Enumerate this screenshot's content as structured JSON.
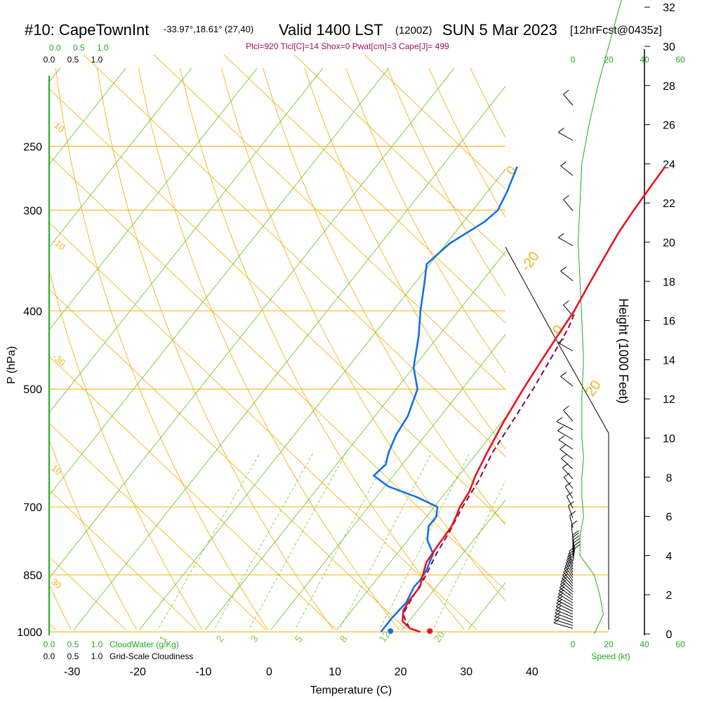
{
  "header": {
    "station": "#10: CapeTownInt",
    "coords": "-33.97°,18.61° (27,40)",
    "valid": "Valid 1400 LST",
    "zulu": "(1200Z)",
    "date": "SUN 5 Mar 2023",
    "fcst": "[12hrFcst@0435z]"
  },
  "parcel_info": "Plcl=920 Tlcl[C]=14 Shox=0 Pwat[cm]=3 Cape[J]= 499",
  "colors": {
    "temperature": "#e8141e",
    "dewpoint": "#1570e8",
    "parcel": "#7a0a4a",
    "isotherm": "#6ab820",
    "dry_adiabat": "#f2b418",
    "mixing_ratio": "#8cc63c",
    "green_label": "#22aa22",
    "parcel_text": "#a0105a"
  },
  "labels": {
    "x_axis": "Temperature (C)",
    "y_axis": "P (hPa)",
    "right_axis": "Height (1000 Feet)",
    "cloudwater": "CloudWater (g/Kg)",
    "cloudiness": "Grid-Scale Cloudiness",
    "speed": "Speed (kt)"
  },
  "top_scales": {
    "green": [
      "0.0",
      "0.5",
      "1.0"
    ],
    "black": [
      "0.0",
      "0.5",
      "1.0"
    ],
    "speed": [
      "0",
      "20",
      "40",
      "60"
    ]
  },
  "bottom_scales": {
    "green": [
      "0.0",
      "0.5",
      "1.0"
    ],
    "black": [
      "0.0",
      "0.5",
      "1.0"
    ],
    "speed": [
      "0",
      "20",
      "40",
      "60"
    ]
  },
  "chart_data": {
    "type": "line",
    "pressure_ticks": [
      250,
      300,
      400,
      500,
      700,
      850,
      1000
    ],
    "pressure_range": [
      250,
      1000
    ],
    "temperature_ticks": [
      -30,
      -20,
      -10,
      0,
      10,
      20,
      30,
      40
    ],
    "height_ticks_kft": [
      0,
      2,
      4,
      6,
      8,
      10,
      12,
      14,
      16,
      18,
      20,
      22,
      24,
      26,
      28,
      30,
      32
    ],
    "mixing_ratio_labels": [
      "1",
      "2",
      "3",
      "5",
      "8",
      "12",
      "20"
    ],
    "dry_adiabat_labels": [
      "10",
      "0",
      "-10",
      "-20",
      "-30",
      "0",
      "10",
      "20",
      "30"
    ],
    "surface_temperature": 24.5,
    "surface_dewpoint": 18.5,
    "temperature_profile": [
      {
        "p": 1000,
        "t": 23.0
      },
      {
        "p": 990,
        "t": 21.0
      },
      {
        "p": 970,
        "t": 19.0
      },
      {
        "p": 940,
        "t": 17.8
      },
      {
        "p": 910,
        "t": 17.5
      },
      {
        "p": 880,
        "t": 17.5
      },
      {
        "p": 850,
        "t": 16.5
      },
      {
        "p": 820,
        "t": 15.5
      },
      {
        "p": 780,
        "t": 15.2
      },
      {
        "p": 740,
        "t": 15.0
      },
      {
        "p": 720,
        "t": 14.5
      },
      {
        "p": 700,
        "t": 13.9
      },
      {
        "p": 670,
        "t": 13.5
      },
      {
        "p": 640,
        "t": 12.5
      },
      {
        "p": 600,
        "t": 11.5
      },
      {
        "p": 550,
        "t": 10.3
      },
      {
        "p": 500,
        "t": 9.3
      },
      {
        "p": 460,
        "t": 8.6
      },
      {
        "p": 430,
        "t": 8.1
      },
      {
        "p": 400,
        "t": 7.6
      },
      {
        "p": 370,
        "t": 6.6
      },
      {
        "p": 340,
        "t": 5.6
      },
      {
        "p": 320,
        "t": 4.9
      },
      {
        "p": 300,
        "t": 4.5
      },
      {
        "p": 280,
        "t": 4.2
      },
      {
        "p": 265,
        "t": 4.0
      }
    ],
    "dewpoint_profile": [
      {
        "p": 1000,
        "t": 17.0
      },
      {
        "p": 960,
        "t": 17.0
      },
      {
        "p": 920,
        "t": 17.3
      },
      {
        "p": 880,
        "t": 16.6
      },
      {
        "p": 860,
        "t": 16.7
      },
      {
        "p": 840,
        "t": 16.5
      },
      {
        "p": 800,
        "t": 15.5
      },
      {
        "p": 770,
        "t": 13.0
      },
      {
        "p": 740,
        "t": 11.5
      },
      {
        "p": 720,
        "t": 11.5
      },
      {
        "p": 700,
        "t": 10.5
      },
      {
        "p": 680,
        "t": 6.0
      },
      {
        "p": 660,
        "t": 0.5
      },
      {
        "p": 640,
        "t": -3.0
      },
      {
        "p": 620,
        "t": -2.5
      },
      {
        "p": 600,
        "t": -3.5
      },
      {
        "p": 570,
        "t": -4.5
      },
      {
        "p": 540,
        "t": -5.0
      },
      {
        "p": 500,
        "t": -6.8
      },
      {
        "p": 470,
        "t": -10.0
      },
      {
        "p": 430,
        "t": -13.0
      },
      {
        "p": 400,
        "t": -15.8
      },
      {
        "p": 370,
        "t": -18.5
      },
      {
        "p": 350,
        "t": -20.5
      },
      {
        "p": 330,
        "t": -19.5
      },
      {
        "p": 310,
        "t": -16.8
      },
      {
        "p": 300,
        "t": -16.2
      },
      {
        "p": 285,
        "t": -17.0
      },
      {
        "p": 265,
        "t": -18.5
      }
    ],
    "parcel_profile": [
      {
        "p": 990,
        "t": 21.0
      },
      {
        "p": 970,
        "t": 19.5
      },
      {
        "p": 950,
        "t": 18.2
      },
      {
        "p": 920,
        "t": 17.8
      },
      {
        "p": 850,
        "t": 17.0
      },
      {
        "p": 800,
        "t": 16.0
      },
      {
        "p": 750,
        "t": 15.3
      },
      {
        "p": 700,
        "t": 14.3
      },
      {
        "p": 650,
        "t": 13.6
      },
      {
        "p": 600,
        "t": 12.3
      },
      {
        "p": 550,
        "t": 11.6
      },
      {
        "p": 500,
        "t": 10.8
      },
      {
        "p": 450,
        "t": 9.6
      },
      {
        "p": 420,
        "t": 8.8
      },
      {
        "p": 400,
        "t": 7.8
      }
    ],
    "wind_speed_profile_kt": [
      {
        "h": 0,
        "s": 12
      },
      {
        "h": 1,
        "s": 17
      },
      {
        "h": 2,
        "s": 15
      },
      {
        "h": 3,
        "s": 12
      },
      {
        "h": 4,
        "s": 4
      },
      {
        "h": 5,
        "s": 4
      },
      {
        "h": 6,
        "s": 6
      },
      {
        "h": 7,
        "s": 5
      },
      {
        "h": 8,
        "s": 5
      },
      {
        "h": 9,
        "s": 6
      },
      {
        "h": 10,
        "s": 5
      },
      {
        "h": 12,
        "s": 5
      },
      {
        "h": 14,
        "s": 6
      },
      {
        "h": 16,
        "s": 5
      },
      {
        "h": 18,
        "s": 4
      },
      {
        "h": 20,
        "s": 3
      },
      {
        "h": 22,
        "s": 4
      },
      {
        "h": 24,
        "s": 5
      },
      {
        "h": 26,
        "s": 9
      },
      {
        "h": 28,
        "s": 14
      },
      {
        "h": 30,
        "s": 20
      },
      {
        "h": 32,
        "s": 26
      },
      {
        "h": 33,
        "s": 29
      }
    ]
  }
}
